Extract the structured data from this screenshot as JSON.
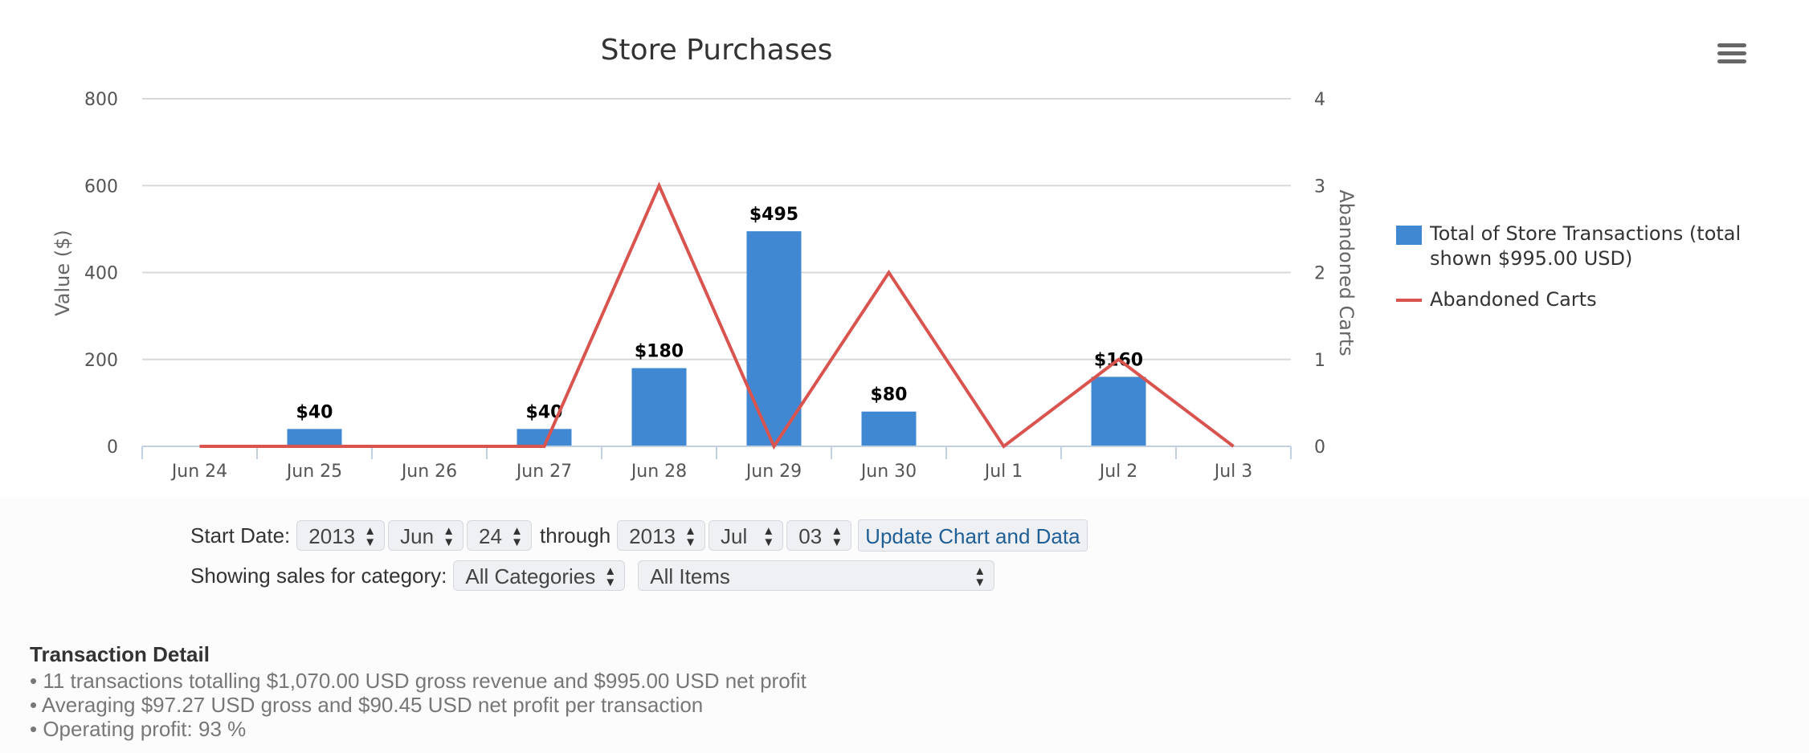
{
  "chart_data": {
    "type": "bar",
    "title": "Store Purchases",
    "categories": [
      "Jun 24",
      "Jun 25",
      "Jun 26",
      "Jun 27",
      "Jun 28",
      "Jun 29",
      "Jun 30",
      "Jul 1",
      "Jul 2",
      "Jul 3"
    ],
    "series": [
      {
        "name": "Total of Store Transactions (total shown $995.00 USD)",
        "type": "bar",
        "axis": "left",
        "color": "#4188d2",
        "values": [
          0,
          40,
          0,
          40,
          180,
          495,
          80,
          0,
          160,
          0
        ],
        "data_labels": [
          "",
          "$40",
          "",
          "$40",
          "$180",
          "$495",
          "$80",
          "",
          "$160",
          ""
        ]
      },
      {
        "name": "Abandoned Carts",
        "type": "line",
        "axis": "right",
        "color": "#d9534f",
        "values": [
          0,
          0,
          0,
          0,
          3,
          0,
          2,
          0,
          1,
          0
        ]
      }
    ],
    "ylabel": "Value ($)",
    "ylabel_right": "Abandoned Carts",
    "ylim": [
      0,
      800
    ],
    "ylim_right": [
      0,
      4
    ],
    "yticks": [
      "0",
      "200",
      "400",
      "600",
      "800"
    ],
    "yticks_right": [
      "0",
      "1",
      "2",
      "3",
      "4"
    ],
    "grid": true,
    "legend_position": "right"
  },
  "controls": {
    "start_label": "Start Date:",
    "start_year": "2013",
    "start_month": "Jun",
    "start_day": "24",
    "through_label": "through",
    "end_year": "2013",
    "end_month": "Jul",
    "end_day": "03",
    "update_button": "Update Chart and Data",
    "category_label": "Showing sales for category:",
    "category_value": "All Categories",
    "items_value": "All Items"
  },
  "detail": {
    "title": "Transaction Detail",
    "lines": [
      "• 11 transactions totalling $1,070.00 USD gross revenue and $995.00 USD net profit",
      "• Averaging $97.27 USD gross and $90.45 USD net profit per transaction",
      "• Operating profit: 93 %"
    ]
  }
}
